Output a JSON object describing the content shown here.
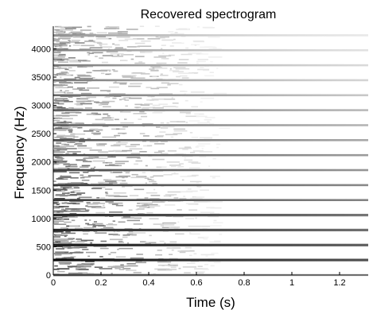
{
  "chart_data": {
    "type": "heatmap",
    "title": "Recovered spectrogram",
    "xlabel": "Time (s)",
    "ylabel": "Frequency (Hz)",
    "xlim": [
      0,
      1.32
    ],
    "ylim": [
      0,
      4400
    ],
    "x_ticks": [
      0,
      0.2,
      0.4,
      0.6,
      0.8,
      1,
      1.2
    ],
    "x_tick_labels": [
      "0",
      "0.2",
      "0.4",
      "0.6",
      "0.8",
      "1",
      "1.2"
    ],
    "y_ticks": [
      0,
      500,
      1000,
      1500,
      2000,
      2500,
      3000,
      3500,
      4000
    ],
    "y_tick_labels": [
      "0",
      "500",
      "1000",
      "1500",
      "2000",
      "2500",
      "3000",
      "3500",
      "4000"
    ],
    "colormap": "gray_reversed",
    "harmonics": [
      {
        "freq_hz": 0,
        "intensity": 0.55,
        "decay_s": 0.9
      },
      {
        "freq_hz": 265,
        "intensity": 0.95,
        "decay_s": 4.0
      },
      {
        "freq_hz": 530,
        "intensity": 0.9,
        "decay_s": 3.6
      },
      {
        "freq_hz": 795,
        "intensity": 0.85,
        "decay_s": 3.2
      },
      {
        "freq_hz": 1060,
        "intensity": 0.85,
        "decay_s": 2.9
      },
      {
        "freq_hz": 1325,
        "intensity": 0.8,
        "decay_s": 2.6
      },
      {
        "freq_hz": 1590,
        "intensity": 0.8,
        "decay_s": 2.4
      },
      {
        "freq_hz": 1855,
        "intensity": 0.75,
        "decay_s": 2.2
      },
      {
        "freq_hz": 2120,
        "intensity": 0.75,
        "decay_s": 2.0
      },
      {
        "freq_hz": 2385,
        "intensity": 0.7,
        "decay_s": 1.8
      },
      {
        "freq_hz": 2650,
        "intensity": 0.65,
        "decay_s": 1.6
      },
      {
        "freq_hz": 2915,
        "intensity": 0.65,
        "decay_s": 1.5
      },
      {
        "freq_hz": 3180,
        "intensity": 0.6,
        "decay_s": 1.3
      },
      {
        "freq_hz": 3445,
        "intensity": 0.55,
        "decay_s": 1.1
      },
      {
        "freq_hz": 3710,
        "intensity": 0.55,
        "decay_s": 1.0
      },
      {
        "freq_hz": 3975,
        "intensity": 0.5,
        "decay_s": 0.9
      },
      {
        "freq_hz": 4240,
        "intensity": 0.45,
        "decay_s": 0.8
      }
    ],
    "noise_fade_s": 0.65
  }
}
